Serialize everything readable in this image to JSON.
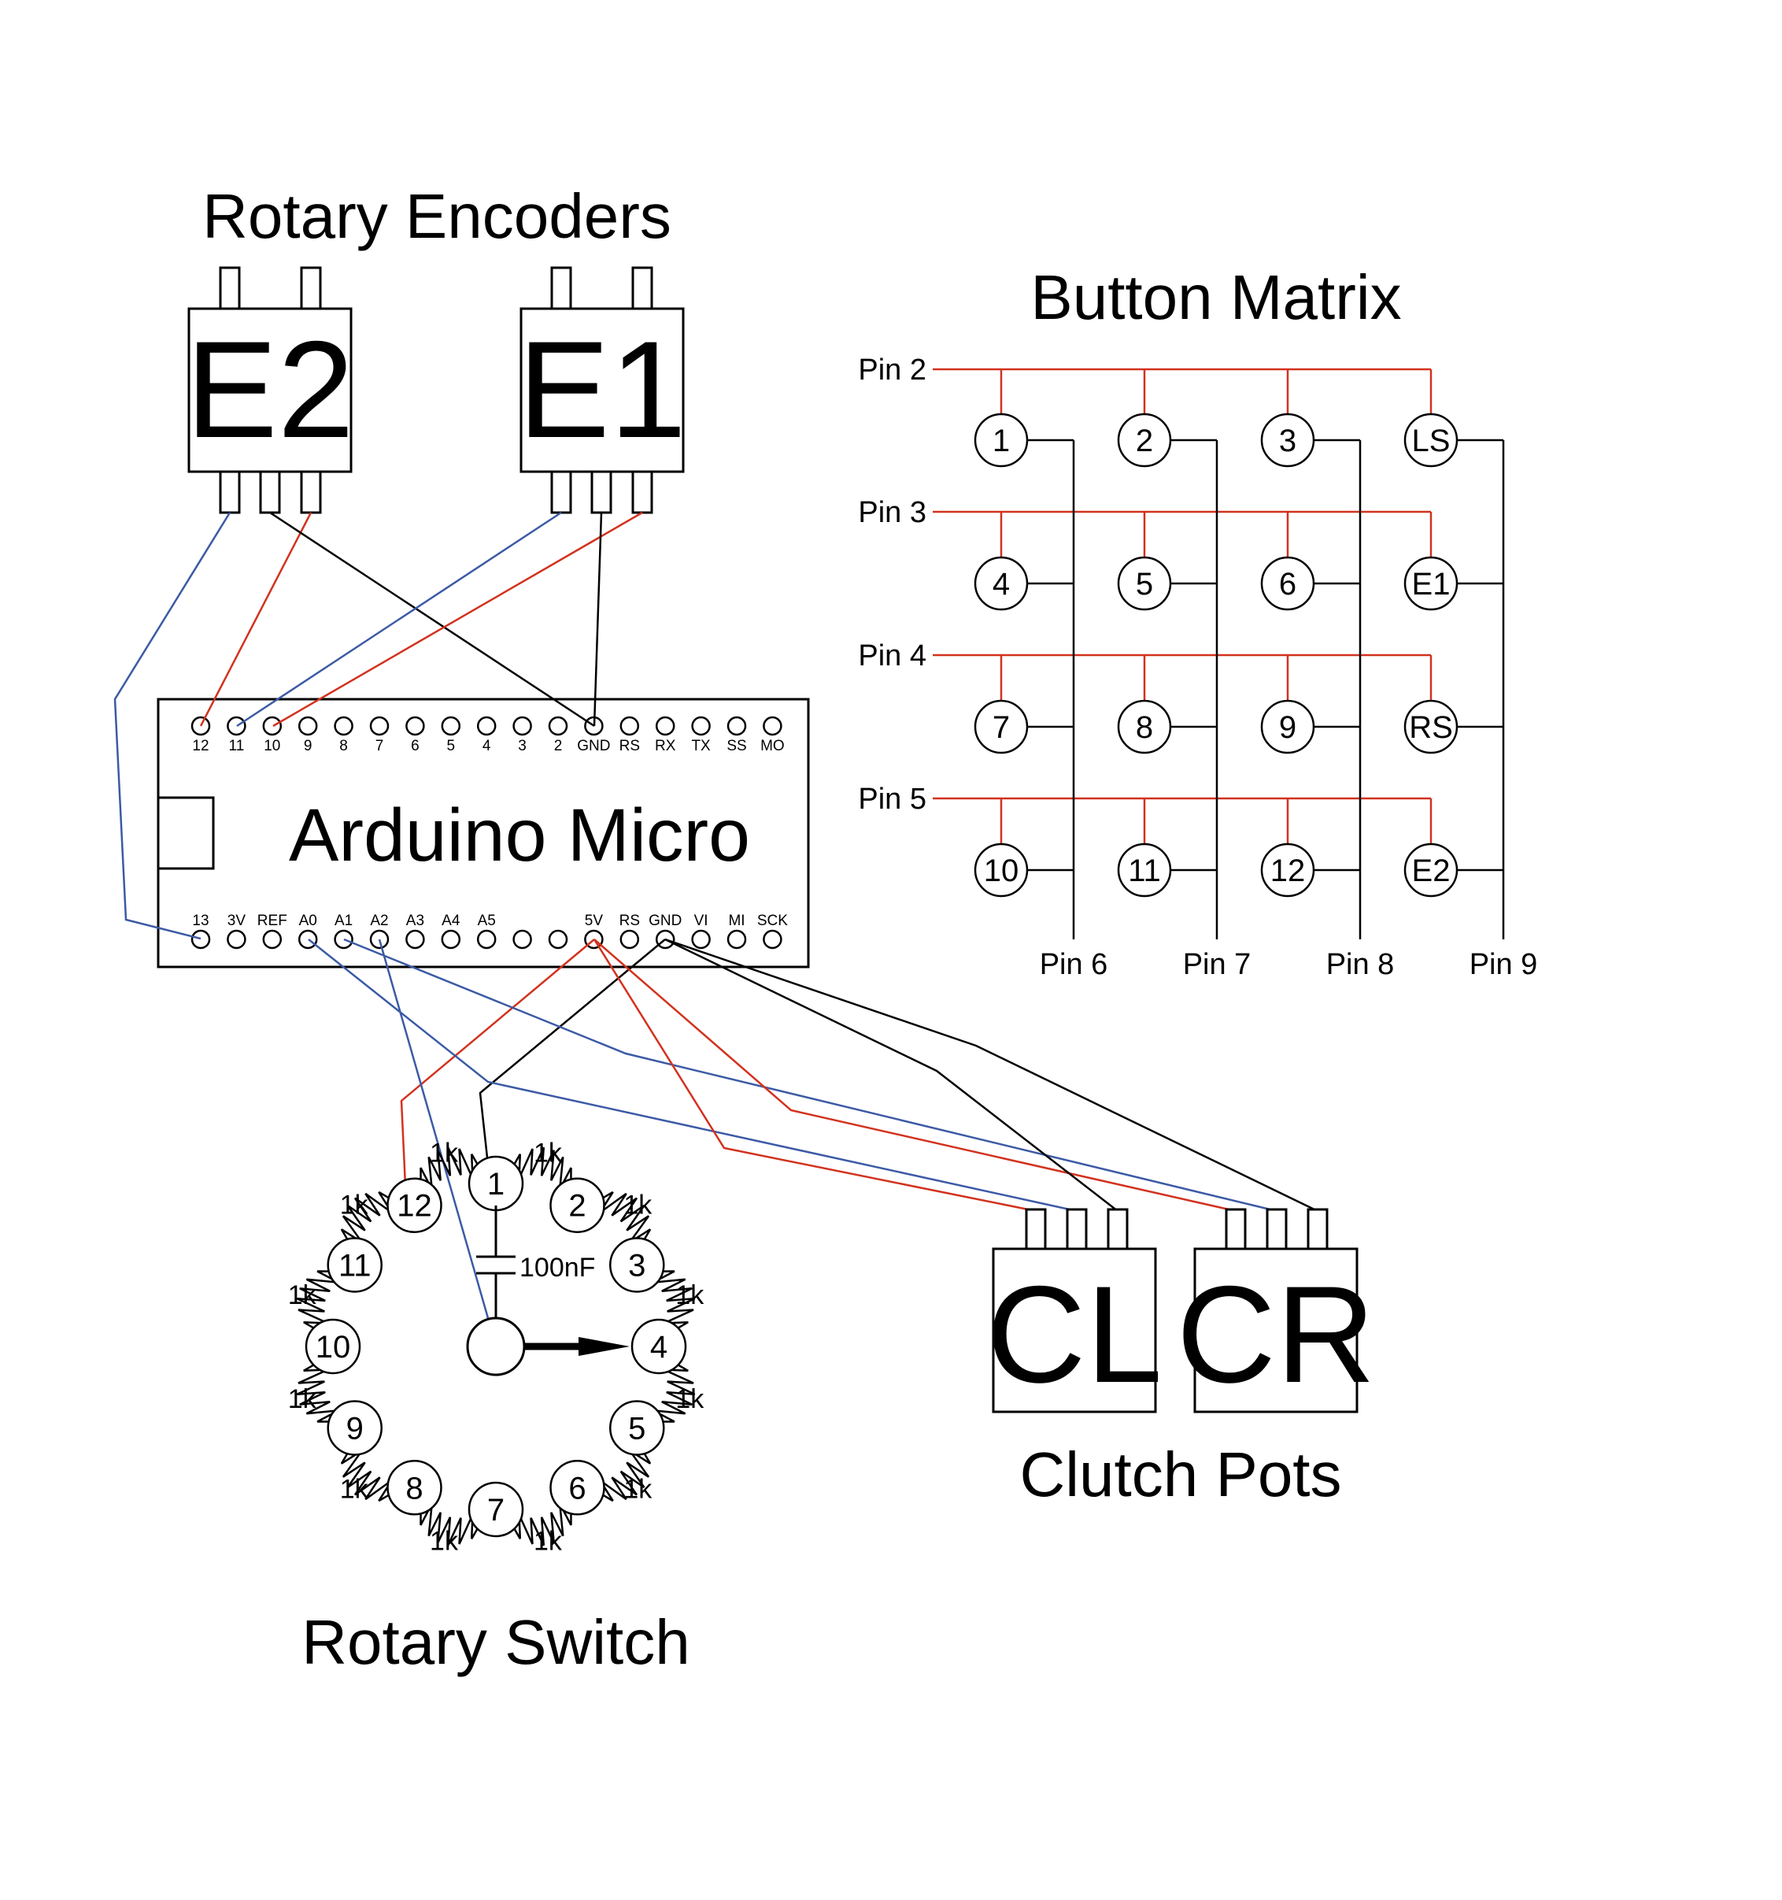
{
  "titles": {
    "encoders": "Rotary Encoders",
    "button_matrix": "Button Matrix",
    "arduino": "Arduino Micro",
    "rotary_switch": "Rotary Switch",
    "clutch_pots": "Clutch Pots"
  },
  "encoders": {
    "e2": "E2",
    "e1": "E1"
  },
  "arduino": {
    "top_pins": [
      "12",
      "11",
      "10",
      "9",
      "8",
      "7",
      "6",
      "5",
      "4",
      "3",
      "2",
      "GND",
      "RS",
      "RX",
      "TX",
      "SS",
      "MO"
    ],
    "bottom_pins": [
      "13",
      "3V",
      "REF",
      "A0",
      "A1",
      "A2",
      "A3",
      "A4",
      "A5",
      "",
      "",
      "5V",
      "RS",
      "GND",
      "VI",
      "MI",
      "SCK"
    ]
  },
  "matrix": {
    "rows": [
      "Pin 2",
      "Pin 3",
      "Pin 4",
      "Pin 5"
    ],
    "cols": [
      "Pin 6",
      "Pin 7",
      "Pin 8",
      "Pin 9"
    ],
    "buttons": [
      [
        "1",
        "2",
        "3",
        "LS"
      ],
      [
        "4",
        "5",
        "6",
        "E1"
      ],
      [
        "7",
        "8",
        "9",
        "RS"
      ],
      [
        "10",
        "11",
        "12",
        "E2"
      ]
    ]
  },
  "rotary_switch": {
    "positions": [
      "1",
      "2",
      "3",
      "4",
      "5",
      "6",
      "7",
      "8",
      "9",
      "10",
      "11",
      "12"
    ],
    "resistor_label": "1k",
    "capacitor_label": "100nF"
  },
  "clutch": {
    "left": "CL",
    "right": "CR"
  },
  "colors": {
    "wire_red": "#d2321e",
    "wire_blue": "#3c5aa5",
    "wire_black": "#000000"
  }
}
